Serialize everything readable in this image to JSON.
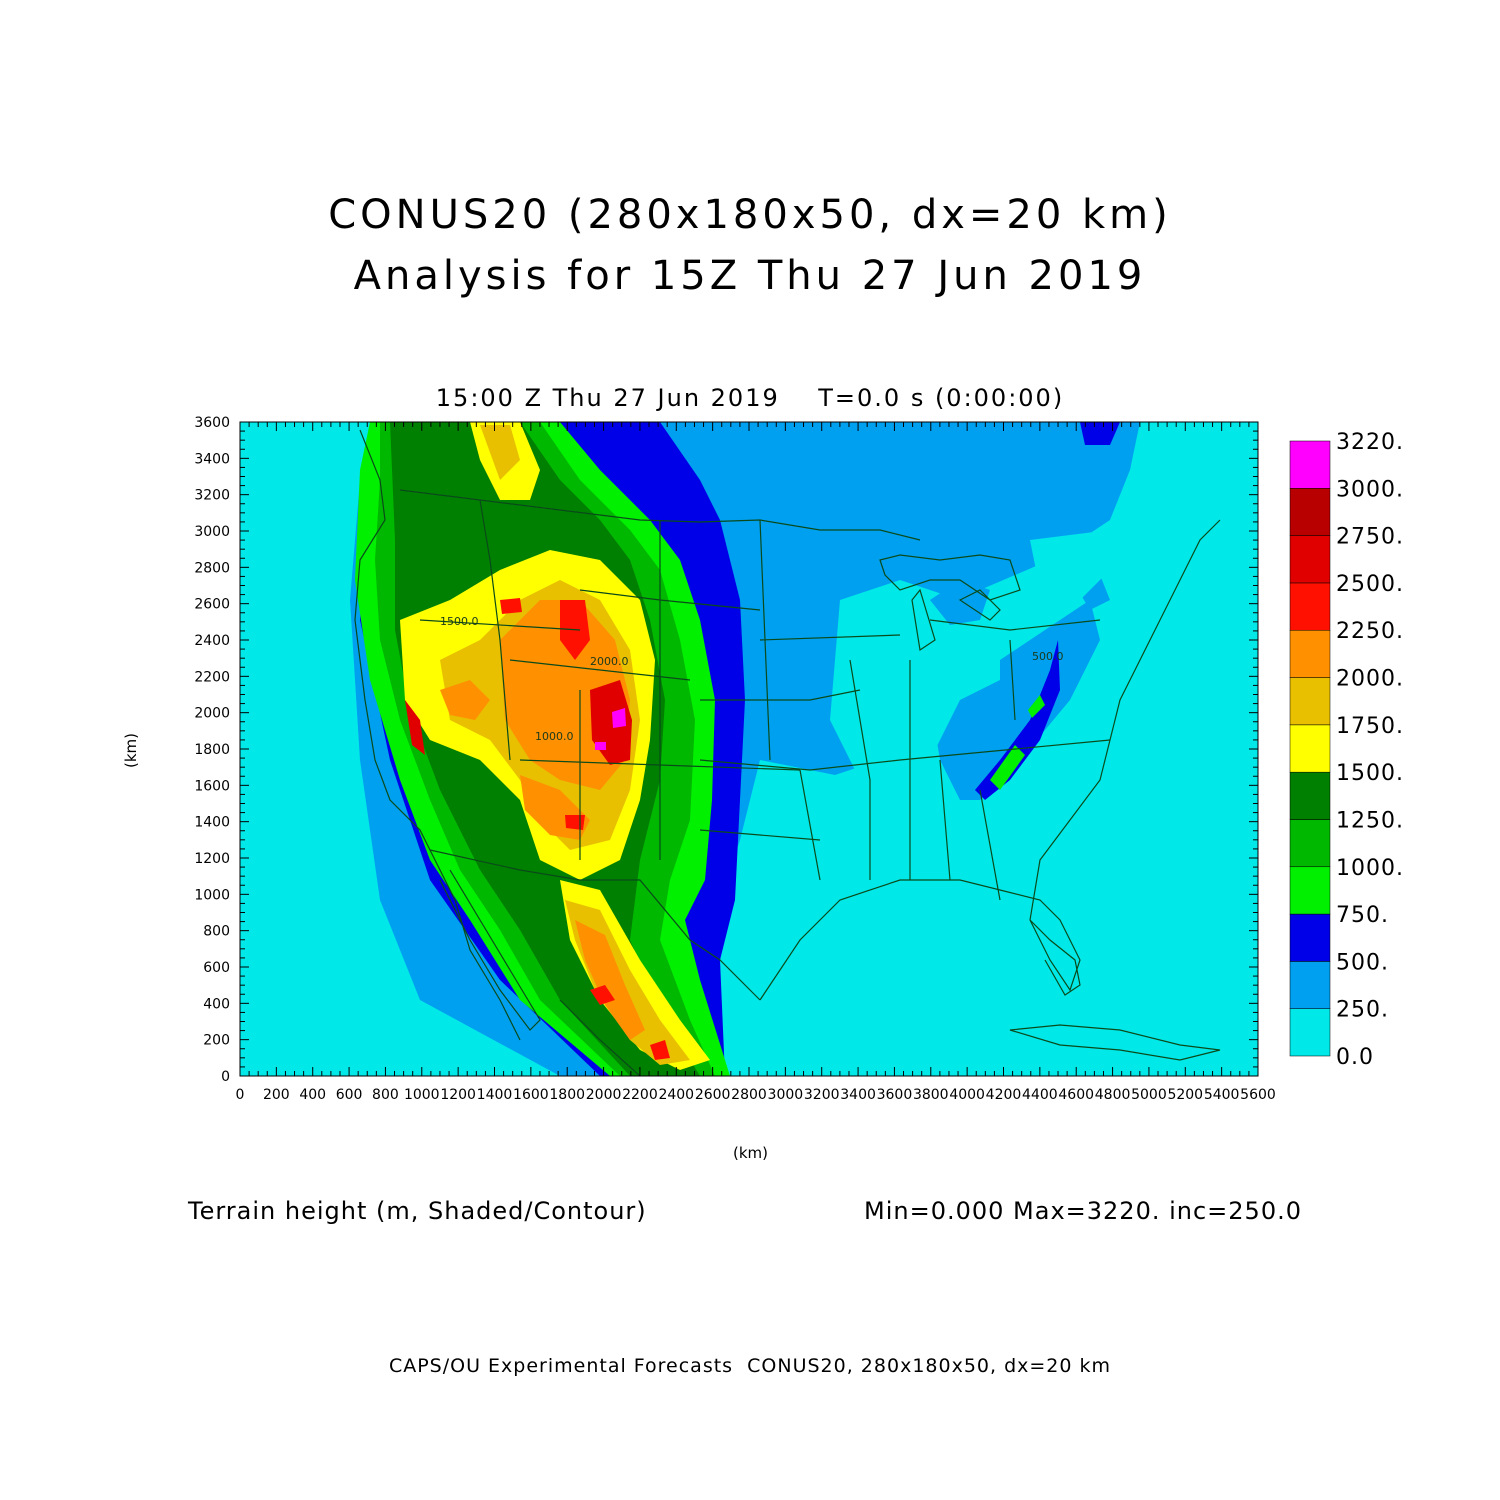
{
  "title_line1": "CONUS20 (280x180x50, dx=20 km)",
  "title_line2": "Analysis for 15Z Thu 27 Jun 2019",
  "subtitle": "15:00 Z Thu 27 Jun 2019    T=0.0 s (0:00:00)",
  "y_axis_label": "(km)",
  "x_axis_label": "(km)",
  "field_label": "Terrain height (m, Shaded/Contour)",
  "stats_label": "Min=0.000 Max=3220. inc=250.0",
  "footer": "CAPS/OU Experimental Forecasts  CONUS20, 280x180x50, dx=20 km",
  "chart_data": {
    "type": "heatmap",
    "xlim": [
      0,
      5600
    ],
    "ylim": [
      0,
      3600
    ],
    "x_ticks": [
      "0",
      "200",
      "400",
      "600",
      "800",
      "1000",
      "1200",
      "1400",
      "1600",
      "1800",
      "2000",
      "2200",
      "2400",
      "2600",
      "2800",
      "3000",
      "3200",
      "3400",
      "3600",
      "3800",
      "4000",
      "4200",
      "4400",
      "4600",
      "4800",
      "5000",
      "5200",
      "5400",
      "5600"
    ],
    "y_ticks": [
      "0",
      "200",
      "400",
      "600",
      "800",
      "1000",
      "1200",
      "1400",
      "1600",
      "1800",
      "2000",
      "2200",
      "2400",
      "2600",
      "2800",
      "3000",
      "3200",
      "3400",
      "3600"
    ],
    "colorbar": {
      "levels": [
        "0.0",
        "250.",
        "500.",
        "750.",
        "1000.",
        "1250.",
        "1500.",
        "1750.",
        "2000.",
        "2250.",
        "2500.",
        "2750.",
        "3000.",
        "3220."
      ],
      "colors": [
        "#00e8e8",
        "#00a0f0",
        "#0000e8",
        "#00f000",
        "#00b800",
        "#008000",
        "#ffff00",
        "#e8c000",
        "#ff9000",
        "#ff1000",
        "#e00000",
        "#b80000",
        "#ff00ff"
      ]
    },
    "contour_labels": [
      "1500.0",
      "2000.0",
      "1000.0",
      "500.0"
    ],
    "colors": {
      "ocean": "#00e8e8",
      "boundaries": "#0a4a1a",
      "frame": "#000000"
    }
  }
}
